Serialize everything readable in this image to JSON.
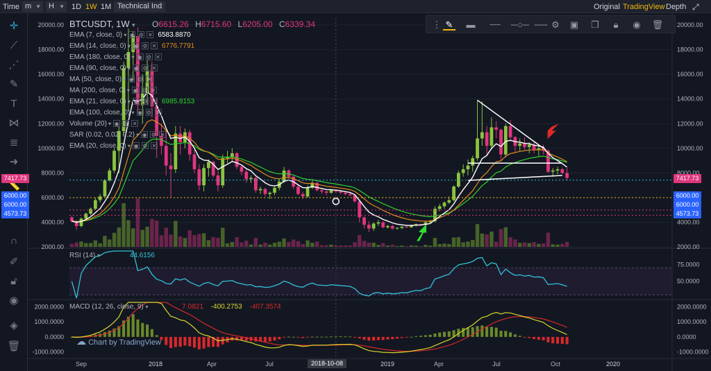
{
  "topbar": {
    "time_label": "Time",
    "minute_select": "m",
    "hour_select": "H",
    "intervals": [
      "1D",
      "1W",
      "1M"
    ],
    "active_interval": "1W",
    "technical_label": "Technical Ind",
    "view_original": "Original",
    "view_tradingview": "TradingView",
    "depth_label": "Depth"
  },
  "colors": {
    "background": "#131722",
    "up": "#8bc53f",
    "down": "#e0357f",
    "accent": "#f0b90b",
    "ema7": "#ffffff",
    "ema14": "#e08a1e",
    "ema21": "#2fd02f",
    "rsi": "#2ec4d6",
    "macd": "#d8d82b",
    "signal": "#d8282b"
  },
  "header": {
    "symbol": "BTCUSDT, 1W",
    "open_label": "O",
    "open": "6615.26",
    "high_label": "H",
    "high": "6715.60",
    "low_label": "L",
    "low": "6205.00",
    "close_label": "C",
    "close": "6339.34"
  },
  "legend": [
    {
      "label": "EMA (7, close, 0)",
      "value": "6583.8870",
      "value_color": "#ffffff"
    },
    {
      "label": "EMA (14, close, 0)",
      "value": "6776.7791",
      "value_color": "#e08a1e"
    },
    {
      "label": "EMA (180, close, 0)",
      "value": "",
      "value_color": ""
    },
    {
      "label": "EMA (90, close, 0)",
      "value": "",
      "value_color": ""
    },
    {
      "label": "MA (50, close, 0)",
      "value": "",
      "value_color": ""
    },
    {
      "label": "MA (200, close, 0)",
      "value": "",
      "value_color": ""
    },
    {
      "label": "EMA (21, close, 0)",
      "value": "6985.8153",
      "value_color": "#2fd02f"
    },
    {
      "label": "EMA (100, close, 0)",
      "value": "",
      "value_color": ""
    },
    {
      "label": "Volume (20)",
      "value": "",
      "value_color": ""
    },
    {
      "label": "SAR (0.02, 0.02, 0.2)",
      "value": "",
      "value_color": ""
    },
    {
      "label": "EMA (20, close, 0)",
      "value": "",
      "value_color": ""
    }
  ],
  "price_tags": {
    "current": "7417.73",
    "level_6000a": "6000.00",
    "level_6000b": "6000.00",
    "level_4573": "4573.73"
  },
  "rsi_panel": {
    "label": "RSI (14)",
    "value": "44.6156"
  },
  "macd_panel": {
    "label": "MACD (12, 26, close, 9)",
    "value1": "7.0821",
    "value2": "-400.2753",
    "value3": "-407.3574"
  },
  "watermark": "Chart by TradingView",
  "crosshair_date": "2018-10-08",
  "chart_data": {
    "type": "candlestick",
    "interval": "1W",
    "x_ticks": [
      "Sep",
      "2018",
      "Apr",
      "Jul",
      "2018-10-08",
      "2019",
      "Apr",
      "Jul",
      "Oct",
      "2020"
    ],
    "y_ticks": [
      2000,
      4000,
      6000,
      8000,
      10000,
      12000,
      14000,
      16000,
      18000,
      20000
    ],
    "ylim": [
      1900,
      20500
    ],
    "candles": [
      [
        4400,
        4500,
        4000,
        4100
      ],
      [
        4100,
        4200,
        3400,
        3700
      ],
      [
        3700,
        4400,
        3600,
        4300
      ],
      [
        4300,
        4800,
        4200,
        4700
      ],
      [
        4700,
        5200,
        4600,
        5100
      ],
      [
        5100,
        6000,
        5000,
        5800
      ],
      [
        5800,
        6300,
        5600,
        6100
      ],
      [
        6100,
        7500,
        6000,
        7400
      ],
      [
        7400,
        8400,
        7300,
        8200
      ],
      [
        8200,
        10000,
        8000,
        9800
      ],
      [
        9800,
        11800,
        8000,
        11400
      ],
      [
        11400,
        17000,
        11000,
        16500
      ],
      [
        16500,
        19700,
        13000,
        17800
      ],
      [
        17800,
        19500,
        15500,
        19100
      ],
      [
        19100,
        19800,
        13000,
        13500
      ],
      [
        13500,
        16000,
        12000,
        14500
      ],
      [
        14500,
        17200,
        13500,
        16300
      ],
      [
        16300,
        17000,
        12500,
        13400
      ],
      [
        13400,
        14000,
        9200,
        11000
      ],
      [
        11000,
        12000,
        9500,
        10200
      ],
      [
        10200,
        11500,
        7800,
        8600
      ],
      [
        8600,
        9600,
        6000,
        8300
      ],
      [
        8300,
        11800,
        8000,
        11200
      ],
      [
        11200,
        11800,
        9500,
        10500
      ],
      [
        10500,
        11600,
        10000,
        11300
      ],
      [
        11300,
        11500,
        9000,
        9500
      ],
      [
        9500,
        9900,
        8000,
        8300
      ],
      [
        8300,
        8700,
        6600,
        7000
      ],
      [
        7000,
        8700,
        6500,
        8400
      ],
      [
        8400,
        9100,
        7700,
        8900
      ],
      [
        8900,
        9000,
        7600,
        7800
      ],
      [
        7800,
        8200,
        6500,
        7000
      ],
      [
        7000,
        9500,
        6800,
        9200
      ],
      [
        9200,
        9800,
        8800,
        9300
      ],
      [
        9300,
        10000,
        8900,
        9600
      ],
      [
        9600,
        9700,
        8300,
        8500
      ],
      [
        8500,
        8600,
        7800,
        8100
      ],
      [
        8100,
        8300,
        7200,
        7500
      ],
      [
        7500,
        7800,
        7200,
        7600
      ],
      [
        7600,
        7700,
        6400,
        6600
      ],
      [
        6600,
        6900,
        6300,
        6700
      ],
      [
        6700,
        6800,
        6100,
        6300
      ],
      [
        6300,
        6500,
        5900,
        6400
      ],
      [
        6400,
        6900,
        6200,
        6800
      ],
      [
        6800,
        7500,
        6600,
        7300
      ],
      [
        7300,
        8500,
        7200,
        8200
      ],
      [
        8200,
        8300,
        7500,
        7700
      ],
      [
        7700,
        7800,
        6700,
        6900
      ],
      [
        6900,
        7100,
        6200,
        6300
      ],
      [
        6300,
        6500,
        5900,
        6100
      ],
      [
        6100,
        7000,
        6000,
        6800
      ],
      [
        6800,
        7400,
        6700,
        7200
      ],
      [
        7200,
        7300,
        6500,
        6600
      ],
      [
        6600,
        6700,
        6300,
        6500
      ],
      [
        6500,
        6600,
        6200,
        6400
      ],
      [
        6400,
        6700,
        6300,
        6600
      ],
      [
        6600,
        6700,
        6400,
        6500
      ],
      [
        6500,
        6600,
        6300,
        6400
      ],
      [
        6400,
        6500,
        6200,
        6300
      ],
      [
        6300,
        6400,
        6100,
        6200
      ],
      [
        6200,
        6300,
        5600,
        5700
      ],
      [
        5700,
        5800,
        4000,
        4400
      ],
      [
        4400,
        4500,
        3500,
        3800
      ],
      [
        3800,
        4100,
        3200,
        3500
      ],
      [
        3500,
        4000,
        3300,
        3900
      ],
      [
        3900,
        4200,
        3700,
        4000
      ],
      [
        4000,
        4100,
        3500,
        3600
      ],
      [
        3600,
        3800,
        3500,
        3700
      ],
      [
        3700,
        3800,
        3400,
        3500
      ],
      [
        3500,
        3600,
        3400,
        3550
      ],
      [
        3550,
        3700,
        3450,
        3650
      ],
      [
        3650,
        3750,
        3550,
        3600
      ],
      [
        3600,
        3800,
        3550,
        3750
      ],
      [
        3750,
        3900,
        3650,
        3850
      ],
      [
        3850,
        3900,
        3750,
        3800
      ],
      [
        3800,
        4100,
        3750,
        4000
      ],
      [
        4000,
        4200,
        3950,
        4100
      ],
      [
        4100,
        5300,
        4000,
        5100
      ],
      [
        5100,
        5500,
        4900,
        5300
      ],
      [
        5300,
        5700,
        5100,
        5600
      ],
      [
        5600,
        6100,
        5500,
        5800
      ],
      [
        5800,
        7000,
        5700,
        6900
      ],
      [
        6900,
        8200,
        6800,
        8000
      ],
      [
        8000,
        8700,
        7700,
        8300
      ],
      [
        8300,
        9100,
        7800,
        8600
      ],
      [
        8600,
        9400,
        8100,
        9200
      ],
      [
        9200,
        13900,
        9000,
        10800
      ],
      [
        10800,
        13800,
        10200,
        11300
      ],
      [
        11300,
        11800,
        9500,
        10200
      ],
      [
        10200,
        12500,
        9900,
        11700
      ],
      [
        11700,
        12200,
        10800,
        11500
      ],
      [
        11500,
        11600,
        9000,
        9500
      ],
      [
        9500,
        12000,
        9300,
        11800
      ],
      [
        11800,
        12300,
        10600,
        10900
      ],
      [
        10900,
        11000,
        9700,
        10200
      ],
      [
        10200,
        10800,
        9800,
        10400
      ],
      [
        10400,
        10900,
        9900,
        10100
      ],
      [
        10100,
        10500,
        9600,
        10300
      ],
      [
        10300,
        10500,
        9600,
        9900
      ],
      [
        9900,
        10200,
        9400,
        10000
      ],
      [
        10000,
        10300,
        9500,
        9800
      ],
      [
        9800,
        9900,
        8000,
        8100
      ],
      [
        8100,
        8400,
        7700,
        8200
      ],
      [
        8200,
        8500,
        7900,
        8300
      ],
      [
        8300,
        8400,
        7900,
        8000
      ],
      [
        8000,
        8400,
        7400,
        7600
      ]
    ],
    "rsi_ylim": [
      25,
      95
    ],
    "rsi_ticks": [
      50,
      75
    ],
    "macd_ylim": [
      -1300,
      2300
    ],
    "macd_ticks": [
      -1000,
      0,
      1000,
      2000
    ]
  }
}
